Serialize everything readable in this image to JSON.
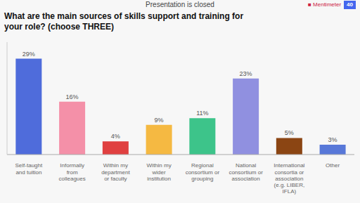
{
  "chart_data": {
    "type": "bar",
    "title": "Presentation is closed",
    "subtitle": "What are the main sources of skills support and training for\nyour role? (choose THREE)",
    "annotations": [
      "■ Mentimeter",
      "40"
    ],
    "categories": [
      "Self-taught\nand tuition",
      "Informally\nfrom\ncolleagues",
      "Within my\ndepartment\nor faculty",
      "Within my\nwider\ninstitution",
      "Regional\nconsortium or\ngrouping",
      "National\nconsortium or\nassociation",
      "International\nconsortia or\nassociation\n(e.g. LIBER,\nIFLA)",
      "Other"
    ],
    "values": [
      29,
      16,
      4,
      9,
      11,
      23,
      5,
      3
    ],
    "value_labels": [
      "29%",
      "16%",
      "4%",
      "9%",
      "11%",
      "23%",
      "5%",
      "3%"
    ],
    "data_labels": true,
    "colors": [
      "#4f6cdb",
      "#f490a8",
      "#e04040",
      "#f5b942",
      "#3dc48a",
      "#9090e0",
      "#8b4513",
      "#5878d8"
    ],
    "ylim": [
      0,
      34
    ],
    "tick_labels": "x",
    "grid": false
  }
}
